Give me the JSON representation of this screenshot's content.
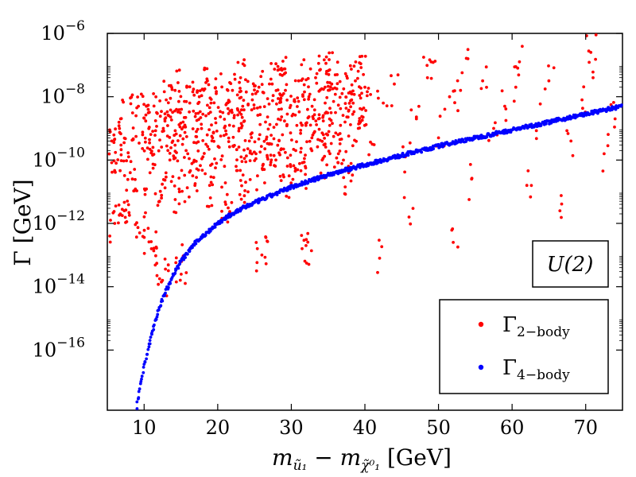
{
  "chart_data": {
    "type": "scatter",
    "title": "",
    "xlabel": "m_ũ1 − m_χ̃01 [GeV]",
    "ylabel": "Γ [GeV]",
    "xlim": [
      5,
      75
    ],
    "ylim_log10": [
      -17.9,
      -6
    ],
    "y_scale": "log",
    "x_ticks": [
      10,
      20,
      30,
      40,
      50,
      60,
      70
    ],
    "x_tick_labels": [
      "10",
      "20",
      "30",
      "40",
      "50",
      "60",
      "70"
    ],
    "y_ticks_log10": [
      -16,
      -14,
      -12,
      -10,
      -8,
      -6
    ],
    "y_tick_labels": [
      {
        "base": "10",
        "exp": "−16"
      },
      {
        "base": "10",
        "exp": "−14"
      },
      {
        "base": "10",
        "exp": "−12"
      },
      {
        "base": "10",
        "exp": "−10"
      },
      {
        "base": "10",
        "exp": "−8"
      },
      {
        "base": "10",
        "exp": "−6"
      }
    ],
    "annotation": "U(2)",
    "legend_position": "lower-right",
    "series": [
      {
        "name": "Γ 2−body",
        "color": "#ff0000",
        "description_points": "scattered cloud; log10 values mostly between -11 and -7.2 for x 5-40, sparser out to 75",
        "points": [
          [
            5.6,
            -9.4
          ],
          [
            6.2,
            -10.1
          ],
          [
            6.8,
            -8.7
          ],
          [
            7.3,
            -11.6
          ],
          [
            7.9,
            -9.9
          ],
          [
            8.4,
            -10.6
          ],
          [
            8.9,
            -8.6
          ],
          [
            9.4,
            -12.3
          ],
          [
            9.8,
            -9.2
          ],
          [
            10.3,
            -8.3
          ],
          [
            10.8,
            -10.4
          ],
          [
            11.2,
            -9.6
          ],
          [
            11.7,
            -8.5
          ],
          [
            12.1,
            -11.3
          ],
          [
            12.6,
            -9.0
          ],
          [
            13.0,
            -8.1
          ],
          [
            13.5,
            -10.0
          ],
          [
            13.9,
            -9.4
          ],
          [
            14.4,
            -8.4
          ],
          [
            14.8,
            -11.0
          ],
          [
            15.3,
            -8.8
          ],
          [
            15.7,
            -9.7
          ],
          [
            16.2,
            -8.2
          ],
          [
            16.6,
            -10.5
          ],
          [
            17.1,
            -9.1
          ],
          [
            17.5,
            -8.0
          ],
          [
            18.0,
            -9.9
          ],
          [
            18.4,
            -8.6
          ],
          [
            18.9,
            -10.8
          ],
          [
            19.3,
            -9.3
          ],
          [
            19.8,
            -7.9
          ],
          [
            20.2,
            -9.6
          ],
          [
            20.7,
            -8.5
          ],
          [
            21.1,
            -11.4
          ],
          [
            21.6,
            -8.9
          ],
          [
            22.0,
            -7.8
          ],
          [
            22.5,
            -10.2
          ],
          [
            22.9,
            -9.0
          ],
          [
            23.4,
            -8.3
          ],
          [
            23.8,
            -10.7
          ],
          [
            24.3,
            -9.4
          ],
          [
            24.7,
            -8.1
          ],
          [
            25.2,
            -9.8
          ],
          [
            25.6,
            -7.7
          ],
          [
            26.1,
            -10.3
          ],
          [
            26.5,
            -8.8
          ],
          [
            27.0,
            -9.5
          ],
          [
            27.4,
            -7.6
          ],
          [
            27.9,
            -10.0
          ],
          [
            28.3,
            -8.4
          ],
          [
            28.8,
            -9.2
          ],
          [
            29.2,
            -7.8
          ],
          [
            29.7,
            -10.5
          ],
          [
            30.1,
            -8.6
          ],
          [
            30.6,
            -9.7
          ],
          [
            31.0,
            -7.5
          ],
          [
            31.5,
            -8.9
          ],
          [
            31.9,
            -10.2
          ],
          [
            32.4,
            -8.0
          ],
          [
            32.8,
            -9.3
          ],
          [
            33.3,
            -7.4
          ],
          [
            33.7,
            -8.7
          ],
          [
            34.2,
            -10.0
          ],
          [
            34.6,
            -8.2
          ],
          [
            35.1,
            -9.1
          ],
          [
            35.5,
            -7.6
          ],
          [
            36.0,
            -8.5
          ],
          [
            36.4,
            -9.8
          ],
          [
            36.9,
            -7.9
          ],
          [
            37.3,
            -8.8
          ],
          [
            37.8,
            -10.4
          ],
          [
            38.2,
            -8.1
          ],
          [
            38.7,
            -7.5
          ],
          [
            39.1,
            -9.0
          ],
          [
            39.6,
            -8.4
          ],
          [
            40.0,
            -7.7
          ],
          [
            41.0,
            -9.5
          ],
          [
            42.5,
            -8.2
          ],
          [
            44.0,
            -7.6
          ],
          [
            45.5,
            -9.9
          ],
          [
            47.0,
            -8.7
          ],
          [
            48.5,
            -7.4
          ],
          [
            50.0,
            -9.3
          ],
          [
            51.5,
            -8.0
          ],
          [
            53.0,
            -7.8
          ],
          [
            54.5,
            -10.6
          ],
          [
            56.0,
            -7.5
          ],
          [
            57.5,
            -9.0
          ],
          [
            59.0,
            -8.3
          ],
          [
            60.5,
            -7.7
          ],
          [
            62.0,
            -10.8
          ],
          [
            63.5,
            -8.9
          ],
          [
            65.0,
            -7.5
          ],
          [
            66.5,
            -11.6
          ],
          [
            68.0,
            -9.4
          ],
          [
            69.5,
            -8.1
          ],
          [
            71.0,
            -7.4
          ],
          [
            72.5,
            -9.8
          ],
          [
            74.0,
            -8.7
          ],
          [
            6.0,
            -12.0
          ],
          [
            11.0,
            -12.8
          ],
          [
            15.0,
            -13.2
          ],
          [
            12.5,
            -13.8
          ],
          [
            26.0,
            -13.0
          ],
          [
            32.0,
            -12.7
          ],
          [
            42.0,
            -13.1
          ],
          [
            52.0,
            -12.6
          ],
          [
            46.0,
            -11.8
          ],
          [
            14.2,
            -7.8
          ],
          [
            18.6,
            -7.5
          ],
          [
            23.1,
            -7.4
          ],
          [
            28.5,
            -7.3
          ],
          [
            34.8,
            -7.2
          ],
          [
            39.8,
            -7.3
          ],
          [
            49.0,
            -6.9
          ],
          [
            54.0,
            -6.8
          ],
          [
            70.7,
            -6.6
          ],
          [
            61.0,
            -6.9
          ]
        ]
      },
      {
        "name": "Γ 4−body",
        "color": "#0000ff",
        "description_points": "tight band rising from (9, -17.8) to (75, -8.3)",
        "points": [
          [
            9.0,
            -17.8
          ],
          [
            9.5,
            -17.1
          ],
          [
            10.0,
            -16.5
          ],
          [
            10.5,
            -16.0
          ],
          [
            11.0,
            -15.5
          ],
          [
            11.5,
            -15.1
          ],
          [
            12.0,
            -14.7
          ],
          [
            12.5,
            -14.4
          ],
          [
            13.0,
            -14.1
          ],
          [
            14.0,
            -13.6
          ],
          [
            15.0,
            -13.2
          ],
          [
            16.0,
            -12.9
          ],
          [
            17.0,
            -12.6
          ],
          [
            18.0,
            -12.4
          ],
          [
            19.0,
            -12.2
          ],
          [
            20.0,
            -12.0
          ],
          [
            22.0,
            -11.7
          ],
          [
            24.0,
            -11.45
          ],
          [
            26.0,
            -11.25
          ],
          [
            28.0,
            -11.05
          ],
          [
            30.0,
            -10.85
          ],
          [
            32.0,
            -10.7
          ],
          [
            34.0,
            -10.55
          ],
          [
            36.0,
            -10.4
          ],
          [
            38.0,
            -10.27
          ],
          [
            40.0,
            -10.15
          ],
          [
            42.0,
            -10.03
          ],
          [
            45.0,
            -9.85
          ],
          [
            48.0,
            -9.68
          ],
          [
            51.0,
            -9.5
          ],
          [
            54.0,
            -9.35
          ],
          [
            57.0,
            -9.2
          ],
          [
            60.0,
            -9.05
          ],
          [
            63.0,
            -8.9
          ],
          [
            66.0,
            -8.75
          ],
          [
            69.0,
            -8.6
          ],
          [
            72.0,
            -8.45
          ],
          [
            75.0,
            -8.3
          ]
        ]
      }
    ]
  }
}
